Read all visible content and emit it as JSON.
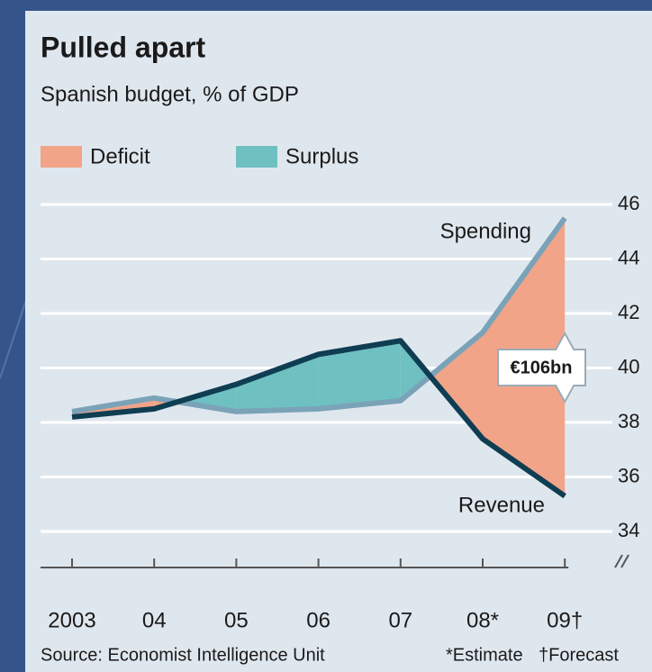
{
  "chart_data": {
    "type": "line",
    "title": "Pulled apart",
    "subtitle": "Spanish budget, % of GDP",
    "categories": [
      "2003",
      "04",
      "05",
      "06",
      "07",
      "08*",
      "09†"
    ],
    "series": [
      {
        "name": "Spending",
        "color": "#7aa3b8",
        "values": [
          38.4,
          38.9,
          38.4,
          38.5,
          38.8,
          41.3,
          45.5
        ]
      },
      {
        "name": "Revenue",
        "color": "#0f3d52",
        "values": [
          38.2,
          38.5,
          39.4,
          40.5,
          41.0,
          37.4,
          35.3
        ]
      }
    ],
    "areas": [
      {
        "name": "Deficit",
        "color": "#f2a488"
      },
      {
        "name": "Surplus",
        "color": "#6fc0c1"
      }
    ],
    "annotations": [
      "€106bn"
    ],
    "ylim": [
      34,
      46
    ],
    "yticks": [
      34,
      36,
      38,
      40,
      42,
      44,
      46
    ],
    "grid": true,
    "source": "Source: Economist Intelligence Unit",
    "notes": [
      "*Estimate",
      "†Forecast"
    ]
  }
}
